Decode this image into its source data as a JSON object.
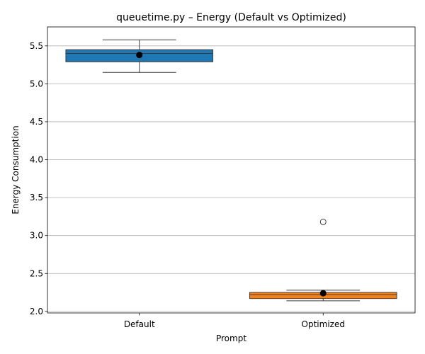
{
  "chart_data": {
    "type": "box",
    "title": "queuetime.py – Energy (Default vs Optimized)",
    "xlabel": "Prompt",
    "ylabel": "Energy Consumption",
    "categories": [
      "Default",
      "Optimized"
    ],
    "ylim": [
      1.98,
      5.75
    ],
    "yticks": [
      2.0,
      2.5,
      3.0,
      3.5,
      4.0,
      4.5,
      5.0,
      5.5
    ],
    "ytick_labels": [
      "2.0",
      "2.5",
      "3.0",
      "3.5",
      "4.0",
      "4.5",
      "5.0",
      "5.5"
    ],
    "grid": "y",
    "boxes": [
      {
        "category": "Default",
        "whisker_low": 5.15,
        "q1": 5.29,
        "median": 5.4,
        "q3": 5.45,
        "whisker_high": 5.58,
        "mean": 5.38,
        "outliers": [],
        "color": "#1f77b4"
      },
      {
        "category": "Optimized",
        "whisker_low": 2.14,
        "q1": 2.17,
        "median": 2.22,
        "q3": 2.25,
        "whisker_high": 2.28,
        "mean": 2.24,
        "outliers": [
          3.18
        ],
        "color": "#ff7f0e"
      }
    ]
  }
}
